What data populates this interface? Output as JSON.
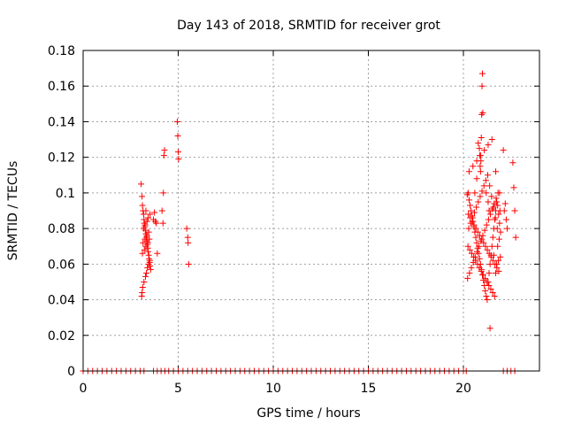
{
  "chart_data": {
    "type": "scatter",
    "title": "Day 143 of 2018, SRMTID for receiver grot",
    "xlabel": "GPS time / hours",
    "ylabel": "SRMTID / TECUs",
    "xlim": [
      0,
      24
    ],
    "ylim": [
      0,
      0.18
    ],
    "xticks": [
      0,
      5,
      10,
      15,
      20
    ],
    "yticks": [
      0,
      0.02,
      0.04,
      0.06,
      0.08,
      0.1,
      0.12,
      0.14,
      0.16,
      0.18
    ],
    "xtick_labels": [
      "0",
      "5",
      "10",
      "15",
      "20"
    ],
    "ytick_labels": [
      "0",
      "0.02",
      "0.04",
      "0.06",
      "0.08",
      "0.1",
      "0.12",
      "0.14",
      "0.16",
      "0.18"
    ],
    "grid": true,
    "marker": "plus",
    "color": "#ff0000",
    "series": [
      {
        "x": [
          3.05,
          3.1,
          3.12,
          3.15,
          3.18,
          3.2,
          3.22,
          3.25,
          3.27,
          3.3,
          3.32,
          3.35,
          3.37,
          3.4,
          3.42,
          3.45,
          3.47,
          3.5,
          3.52,
          3.55,
          3.1,
          3.13,
          3.2,
          3.28,
          3.33,
          3.38,
          3.44,
          3.5,
          3.15,
          3.25,
          3.35,
          3.45,
          3.12,
          3.22,
          3.3,
          3.4,
          3.48,
          3.18,
          3.26,
          3.36,
          3.42,
          3.52,
          3.08,
          3.3,
          3.7,
          3.75,
          3.8,
          3.85,
          3.9,
          4.15,
          4.2,
          4.22,
          4.25,
          4.28,
          4.95,
          4.98,
          5.0,
          5.02,
          5.45,
          5.5,
          5.52,
          5.55,
          20.2,
          20.25,
          20.3,
          20.35,
          20.4,
          20.45,
          20.5,
          20.55,
          20.6,
          20.65,
          20.7,
          20.75,
          20.8,
          20.85,
          20.9,
          20.95,
          21.0,
          21.05,
          21.1,
          21.15,
          21.2,
          21.25,
          21.3,
          21.35,
          21.4,
          21.45,
          21.5,
          21.55,
          21.6,
          21.65,
          21.7,
          21.75,
          21.8,
          21.85,
          21.9,
          21.95,
          20.22,
          20.32,
          20.42,
          20.52,
          20.62,
          20.72,
          20.82,
          20.92,
          21.02,
          21.12,
          21.22,
          21.32,
          21.42,
          21.52,
          21.62,
          21.72,
          21.82,
          21.92,
          20.28,
          20.38,
          20.48,
          20.58,
          20.68,
          20.78,
          20.88,
          20.98,
          21.08,
          21.18,
          21.28,
          21.38,
          21.48,
          21.58,
          21.68,
          21.78,
          21.88,
          20.24,
          20.34,
          20.44,
          20.54,
          20.64,
          20.74,
          20.84,
          20.94,
          21.04,
          21.14,
          21.24,
          21.34,
          21.44,
          21.54,
          21.64,
          21.74,
          21.84,
          21.94,
          20.26,
          20.36,
          20.46,
          20.56,
          20.66,
          20.76,
          20.86,
          20.96,
          21.06,
          21.16,
          21.26,
          21.36,
          21.46,
          21.56,
          21.66,
          21.76,
          21.86,
          20.3,
          20.5,
          20.7,
          20.9,
          21.1,
          21.3,
          21.5,
          21.7,
          21.9,
          20.78,
          20.84,
          20.86,
          20.88,
          20.9,
          20.92,
          20.94,
          20.96,
          20.98,
          21.0,
          21.02,
          20.6,
          20.7,
          21.2,
          21.3,
          21.4,
          21.6,
          21.7,
          21.8,
          21.35,
          22.1,
          22.15,
          22.2,
          22.25,
          22.3,
          22.6,
          22.65,
          22.7,
          22.75
        ],
        "y": [
          0.105,
          0.098,
          0.093,
          0.09,
          0.088,
          0.085,
          0.083,
          0.081,
          0.079,
          0.077,
          0.075,
          0.073,
          0.071,
          0.069,
          0.067,
          0.065,
          0.063,
          0.061,
          0.059,
          0.057,
          0.044,
          0.047,
          0.05,
          0.053,
          0.055,
          0.058,
          0.06,
          0.062,
          0.072,
          0.074,
          0.076,
          0.078,
          0.066,
          0.068,
          0.07,
          0.072,
          0.074,
          0.08,
          0.082,
          0.084,
          0.086,
          0.088,
          0.042,
          0.09,
          0.085,
          0.089,
          0.084,
          0.083,
          0.066,
          0.09,
          0.083,
          0.1,
          0.121,
          0.124,
          0.14,
          0.132,
          0.123,
          0.119,
          0.08,
          0.075,
          0.072,
          0.06,
          0.099,
          0.1,
          0.096,
          0.093,
          0.09,
          0.087,
          0.084,
          0.081,
          0.078,
          0.075,
          0.072,
          0.069,
          0.066,
          0.063,
          0.06,
          0.057,
          0.054,
          0.051,
          0.048,
          0.045,
          0.042,
          0.04,
          0.05,
          0.055,
          0.06,
          0.065,
          0.07,
          0.075,
          0.08,
          0.085,
          0.09,
          0.095,
          0.093,
          0.088,
          0.083,
          0.078,
          0.052,
          0.055,
          0.058,
          0.061,
          0.064,
          0.067,
          0.07,
          0.073,
          0.076,
          0.079,
          0.082,
          0.085,
          0.088,
          0.091,
          0.094,
          0.097,
          0.1,
          0.09,
          0.08,
          0.083,
          0.086,
          0.089,
          0.092,
          0.095,
          0.098,
          0.101,
          0.104,
          0.107,
          0.11,
          0.104,
          0.098,
          0.092,
          0.086,
          0.08,
          0.074,
          0.07,
          0.068,
          0.066,
          0.064,
          0.062,
          0.06,
          0.058,
          0.056,
          0.054,
          0.052,
          0.05,
          0.048,
          0.046,
          0.044,
          0.042,
          0.06,
          0.062,
          0.064,
          0.088,
          0.086,
          0.084,
          0.082,
          0.08,
          0.078,
          0.076,
          0.074,
          0.072,
          0.07,
          0.068,
          0.066,
          0.064,
          0.062,
          0.06,
          0.058,
          0.056,
          0.112,
          0.115,
          0.118,
          0.121,
          0.124,
          0.127,
          0.13,
          0.112,
          0.1,
          0.128,
          0.125,
          0.121,
          0.115,
          0.112,
          0.118,
          0.131,
          0.144,
          0.16,
          0.167,
          0.145,
          0.1,
          0.108,
          0.1,
          0.095,
          0.024,
          0.065,
          0.055,
          0.07,
          0.09,
          0.124,
          0.09,
          0.094,
          0.085,
          0.08,
          0.117,
          0.103,
          0.09,
          0.075
        ]
      },
      {
        "x": [
          0.0,
          0.25,
          0.5,
          0.75,
          1.0,
          1.25,
          1.5,
          1.75,
          2.0,
          2.25,
          2.5,
          2.75,
          3.0,
          3.2,
          3.7,
          3.9,
          4.1,
          4.3,
          4.5,
          4.75,
          5.0,
          5.25,
          5.5,
          5.75,
          6.0,
          6.25,
          6.5,
          6.75,
          7.0,
          7.25,
          7.5,
          7.75,
          8.0,
          8.25,
          8.5,
          8.75,
          9.0,
          9.25,
          9.5,
          9.75,
          10.0,
          10.25,
          10.5,
          10.75,
          11.0,
          11.25,
          11.5,
          11.75,
          12.0,
          12.25,
          12.5,
          12.75,
          13.0,
          13.25,
          13.5,
          13.75,
          14.0,
          14.25,
          14.5,
          14.75,
          15.0,
          15.25,
          15.5,
          15.75,
          16.0,
          16.25,
          16.5,
          16.75,
          17.0,
          17.25,
          17.5,
          17.75,
          18.0,
          18.25,
          18.5,
          18.75,
          19.0,
          19.25,
          19.5,
          19.75,
          20.0,
          20.15,
          22.1,
          22.3,
          22.5,
          22.7
        ],
        "y": [
          0,
          0,
          0,
          0,
          0,
          0,
          0,
          0,
          0,
          0,
          0,
          0,
          0,
          0,
          0,
          0,
          0,
          0,
          0,
          0,
          0,
          0,
          0,
          0,
          0,
          0,
          0,
          0,
          0,
          0,
          0,
          0,
          0,
          0,
          0,
          0,
          0,
          0,
          0,
          0,
          0,
          0,
          0,
          0,
          0,
          0,
          0,
          0,
          0,
          0,
          0,
          0,
          0,
          0,
          0,
          0,
          0,
          0,
          0,
          0,
          0,
          0,
          0,
          0,
          0,
          0,
          0,
          0,
          0,
          0,
          0,
          0,
          0,
          0,
          0,
          0,
          0,
          0,
          0,
          0,
          0,
          0,
          0,
          0,
          0,
          0
        ]
      }
    ]
  }
}
